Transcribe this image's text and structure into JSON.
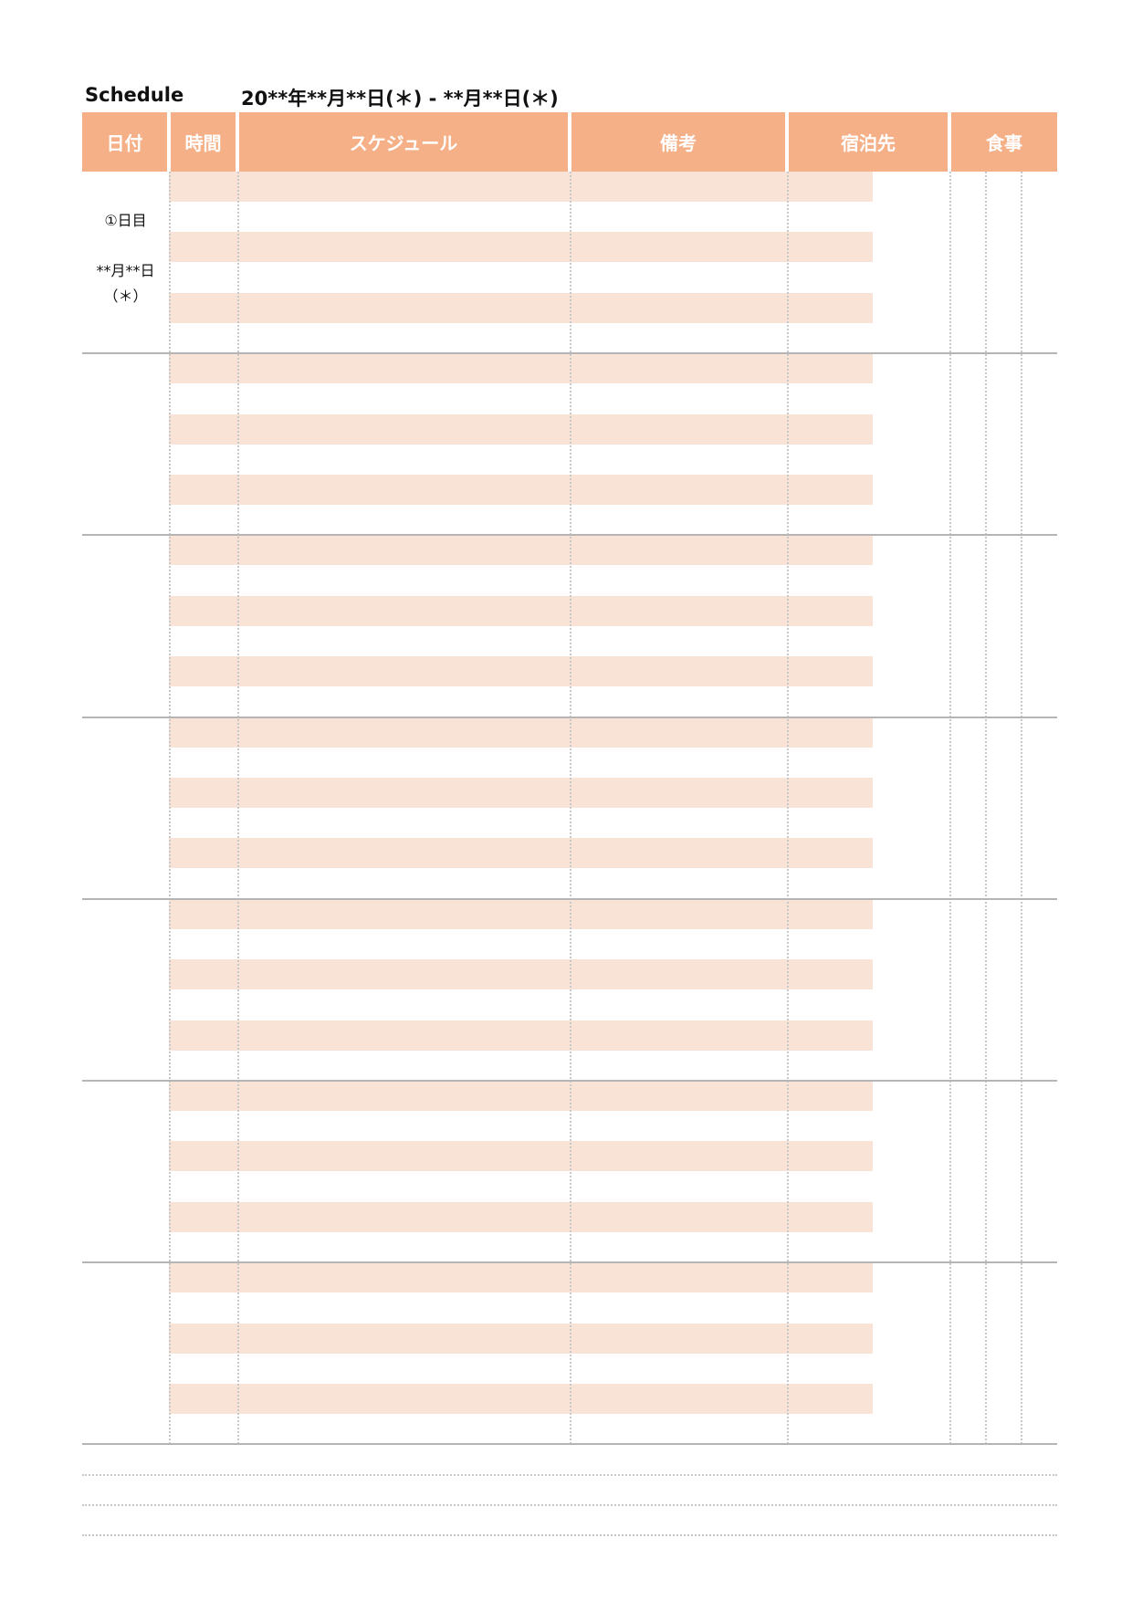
{
  "header": {
    "title": "Schedule",
    "date_range": "20**年**月**日(＊) - **月**日(＊)"
  },
  "columns": {
    "date": "日付",
    "time": "時間",
    "schedule": "スケジュール",
    "notes": "備考",
    "lodging": "宿泊先",
    "meals": "食事"
  },
  "days": [
    {
      "number": "①日目",
      "date": "**月**日",
      "weekday": "（＊）"
    }
  ],
  "colors": {
    "header_bg": "#f5b087",
    "stripe": "#f9e3d6",
    "grid": "#b5b5b5"
  }
}
